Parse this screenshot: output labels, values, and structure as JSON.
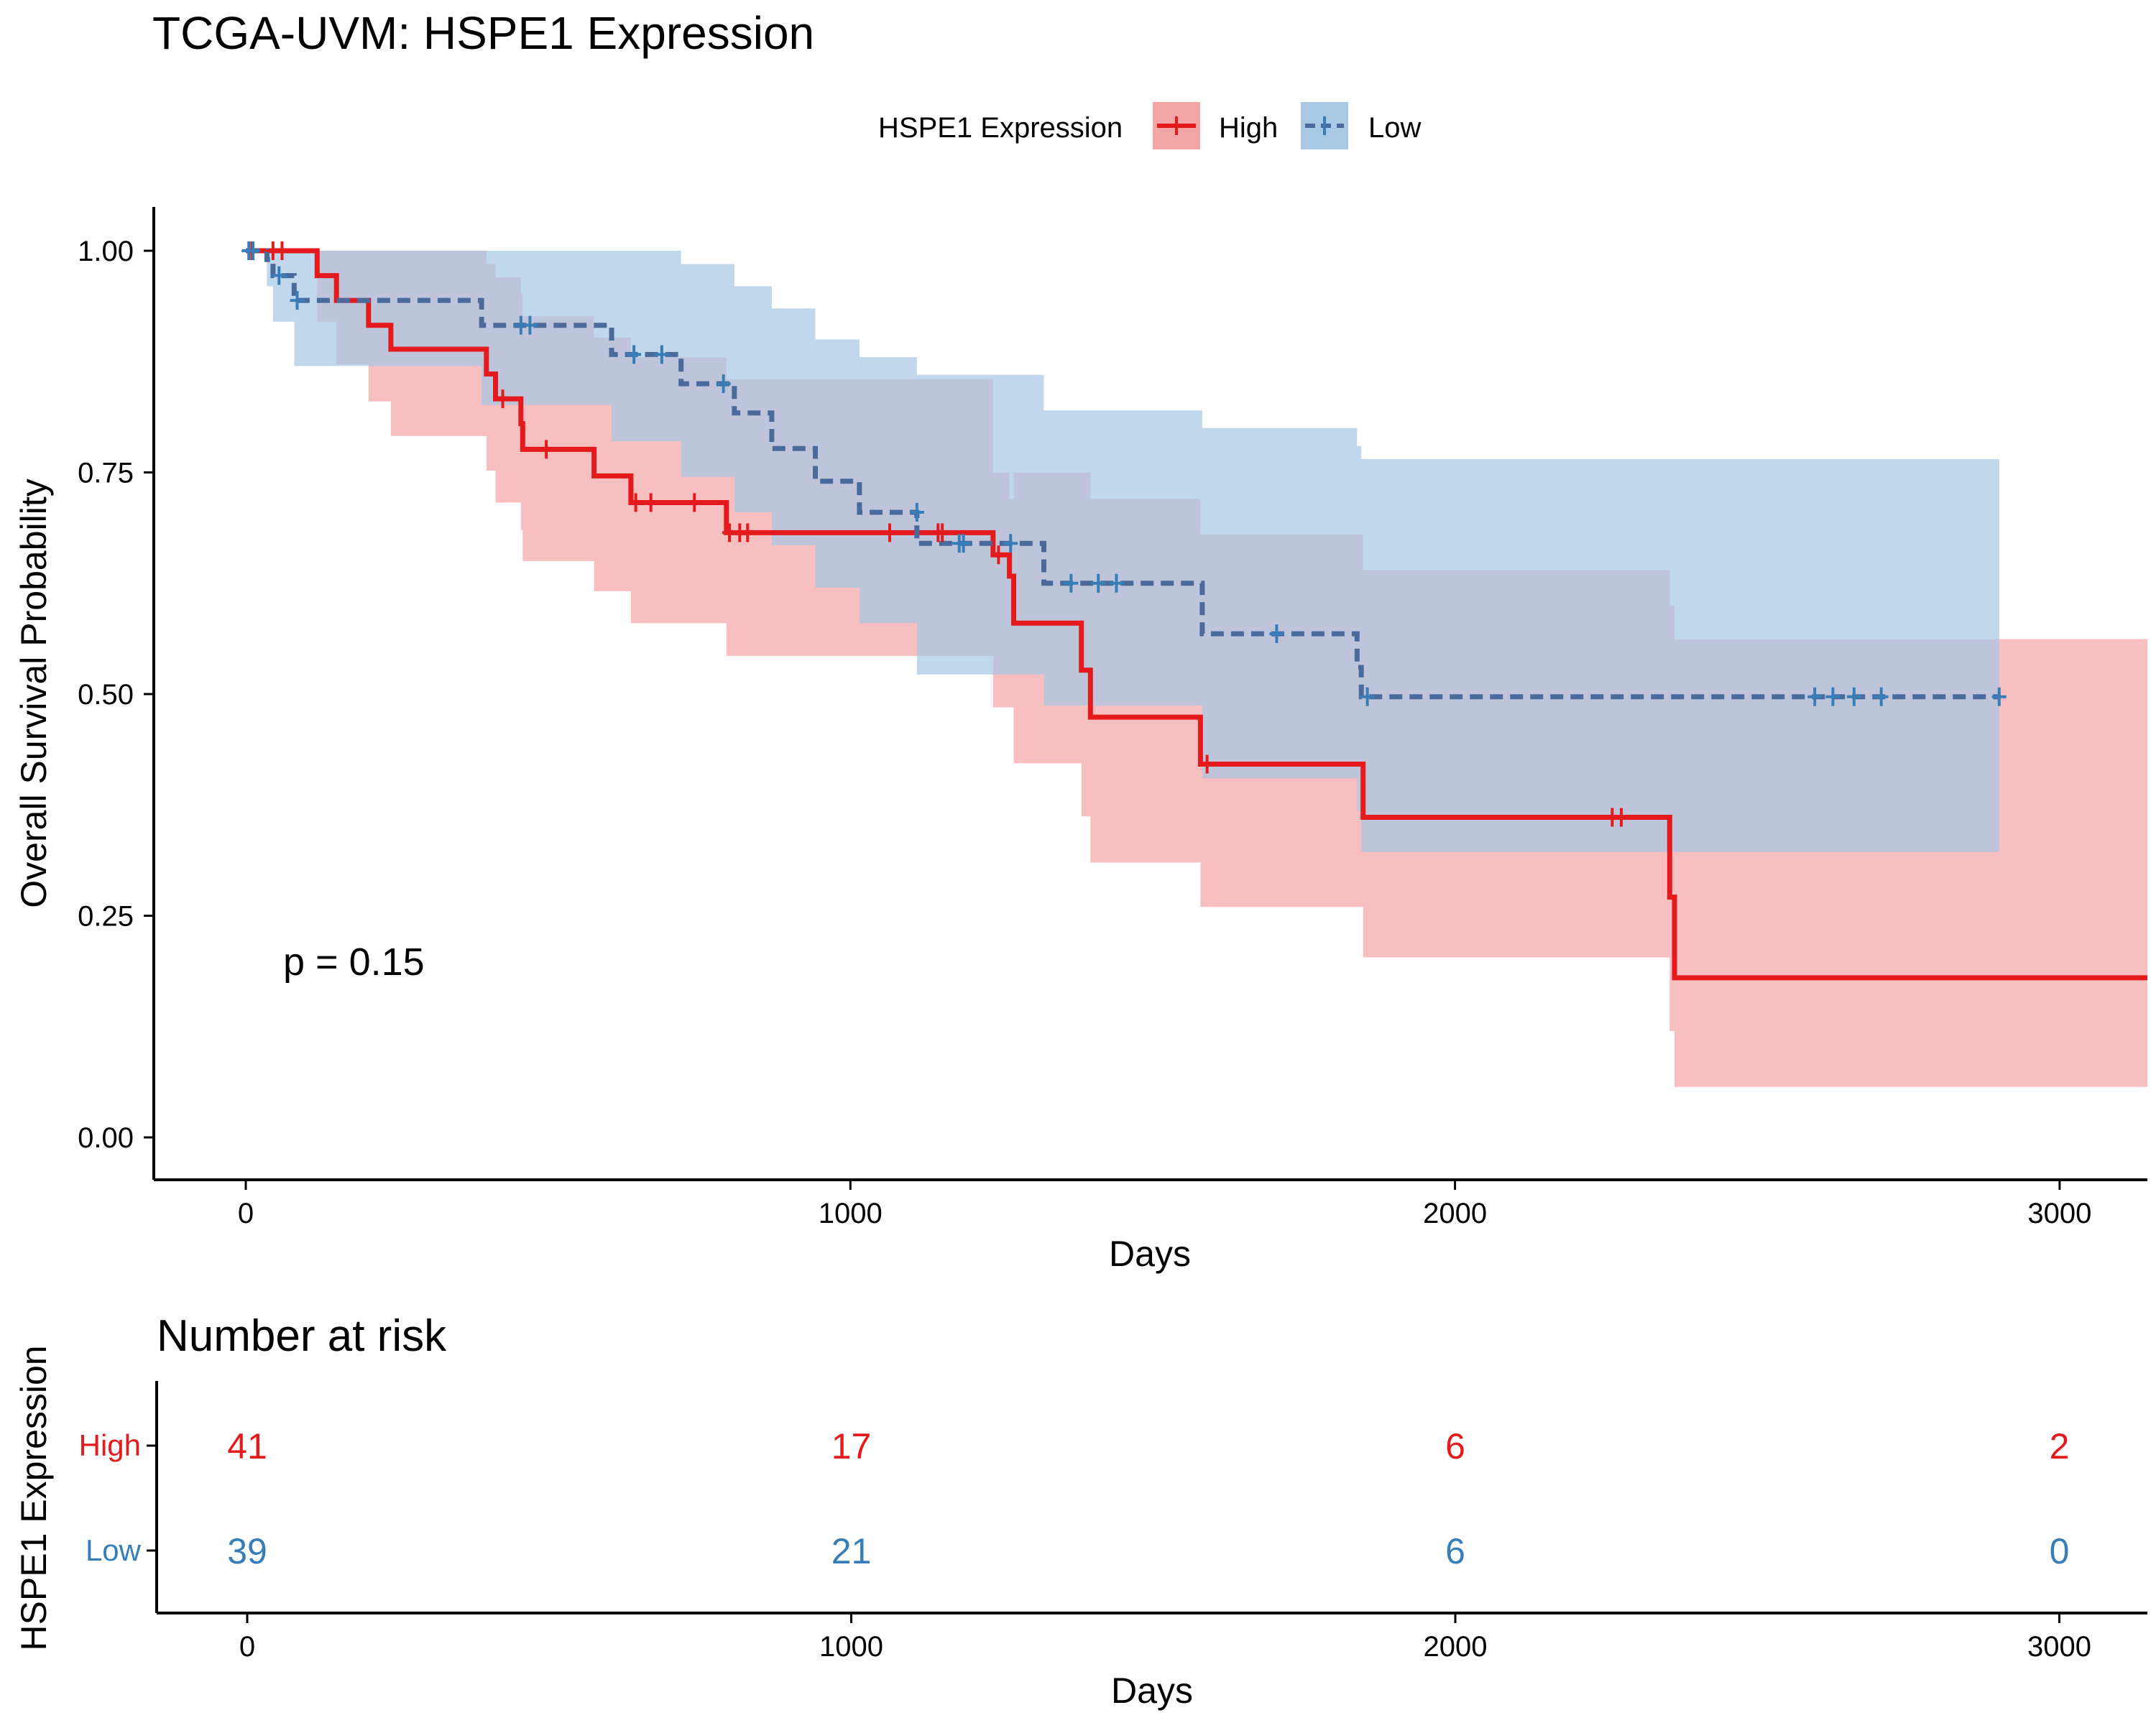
{
  "title": "TCGA-UVM: HSPE1 Expression",
  "legend": {
    "title": "HSPE1 Expression",
    "items": [
      {
        "label": "High",
        "color": "#E41A1C"
      },
      {
        "label": "Low",
        "color": "#377EB8"
      }
    ]
  },
  "p_value_text": "p = 0.15",
  "chart_data": [
    {
      "type": "line",
      "subtype": "kaplan-meier",
      "title": "TCGA-UVM: HSPE1 Expression",
      "xlabel": "Days",
      "ylabel": "Overall Survival Probability",
      "xlim": [
        -150,
        3150
      ],
      "ylim": [
        -0.05,
        1.05
      ],
      "x_ticks": [
        0,
        1000,
        2000,
        3000
      ],
      "y_ticks": [
        0.0,
        0.25,
        0.5,
        0.75,
        1.0
      ],
      "y_tick_labels": [
        "0.00",
        "0.25",
        "0.50",
        "0.75",
        "1.00"
      ],
      "legend_position": "top",
      "annotation": "p = 0.15",
      "series": [
        {
          "name": "High",
          "color": "#E41A1C",
          "fill": "#F4A6A6",
          "dash": "solid",
          "steps": [
            {
              "x": 0,
              "y": 1.0,
              "lo": 1.0,
              "hi": 1.0
            },
            {
              "x": 118,
              "y": 0.972,
              "lo": 0.92,
              "hi": 1.0
            },
            {
              "x": 150,
              "y": 0.944,
              "lo": 0.872,
              "hi": 1.0
            },
            {
              "x": 203,
              "y": 0.916,
              "lo": 0.83,
              "hi": 1.0
            },
            {
              "x": 240,
              "y": 0.889,
              "lo": 0.791,
              "hi": 1.0
            },
            {
              "x": 398,
              "y": 0.861,
              "lo": 0.752,
              "hi": 0.985
            },
            {
              "x": 413,
              "y": 0.833,
              "lo": 0.716,
              "hi": 0.97
            },
            {
              "x": 455,
              "y": 0.805,
              "lo": 0.685,
              "hi": 0.952
            },
            {
              "x": 458,
              "y": 0.776,
              "lo": 0.65,
              "hi": 0.926
            },
            {
              "x": 576,
              "y": 0.746,
              "lo": 0.616,
              "hi": 0.902
            },
            {
              "x": 637,
              "y": 0.716,
              "lo": 0.58,
              "hi": 0.88
            },
            {
              "x": 795,
              "y": 0.682,
              "lo": 0.543,
              "hi": 0.855
            },
            {
              "x": 1236,
              "y": 0.657,
              "lo": 0.485,
              "hi": 0.75
            },
            {
              "x": 1263,
              "y": 0.633,
              "lo": 0.485,
              "hi": 0.72
            },
            {
              "x": 1270,
              "y": 0.58,
              "lo": 0.422,
              "hi": 0.75
            },
            {
              "x": 1382,
              "y": 0.527,
              "lo": 0.362,
              "hi": 0.75
            },
            {
              "x": 1397,
              "y": 0.474,
              "lo": 0.31,
              "hi": 0.72
            },
            {
              "x": 1579,
              "y": 0.421,
              "lo": 0.26,
              "hi": 0.68
            },
            {
              "x": 1848,
              "y": 0.361,
              "lo": 0.203,
              "hi": 0.64
            },
            {
              "x": 2355,
              "y": 0.271,
              "lo": 0.12,
              "hi": 0.6
            },
            {
              "x": 2363,
              "y": 0.18,
              "lo": 0.057,
              "hi": 0.562
            },
            {
              "x": 3150,
              "y": 0.18,
              "lo": 0.057,
              "hi": 0.562
            }
          ],
          "censored": [
            {
              "x": 10,
              "y": 1.0
            },
            {
              "x": 45,
              "y": 1.0
            },
            {
              "x": 60,
              "y": 1.0
            },
            {
              "x": 425,
              "y": 0.833
            },
            {
              "x": 497,
              "y": 0.776
            },
            {
              "x": 645,
              "y": 0.716
            },
            {
              "x": 670,
              "y": 0.716
            },
            {
              "x": 742,
              "y": 0.716
            },
            {
              "x": 800,
              "y": 0.682
            },
            {
              "x": 817,
              "y": 0.682
            },
            {
              "x": 830,
              "y": 0.682
            },
            {
              "x": 1065,
              "y": 0.682
            },
            {
              "x": 1145,
              "y": 0.682
            },
            {
              "x": 1152,
              "y": 0.682
            },
            {
              "x": 1245,
              "y": 0.657
            },
            {
              "x": 1590,
              "y": 0.421
            },
            {
              "x": 2260,
              "y": 0.361
            },
            {
              "x": 2275,
              "y": 0.361
            }
          ]
        },
        {
          "name": "Low",
          "color": "#377EB8",
          "line_color": "#4A6A9C",
          "fill": "#A8C8E4",
          "dash": "dashed",
          "steps": [
            {
              "x": 0,
              "y": 1.0,
              "lo": 1.0,
              "hi": 1.0
            },
            {
              "x": 35,
              "y": 0.99,
              "lo": 0.96,
              "hi": 1.0
            },
            {
              "x": 45,
              "y": 0.972,
              "lo": 0.92,
              "hi": 1.0
            },
            {
              "x": 80,
              "y": 0.944,
              "lo": 0.87,
              "hi": 1.0
            },
            {
              "x": 390,
              "y": 0.916,
              "lo": 0.826,
              "hi": 1.0
            },
            {
              "x": 605,
              "y": 0.883,
              "lo": 0.785,
              "hi": 1.0
            },
            {
              "x": 720,
              "y": 0.85,
              "lo": 0.745,
              "hi": 0.985
            },
            {
              "x": 808,
              "y": 0.817,
              "lo": 0.705,
              "hi": 0.96
            },
            {
              "x": 870,
              "y": 0.777,
              "lo": 0.668,
              "hi": 0.935
            },
            {
              "x": 942,
              "y": 0.74,
              "lo": 0.62,
              "hi": 0.9
            },
            {
              "x": 1015,
              "y": 0.705,
              "lo": 0.58,
              "hi": 0.88
            },
            {
              "x": 1110,
              "y": 0.67,
              "lo": 0.522,
              "hi": 0.86
            },
            {
              "x": 1320,
              "y": 0.625,
              "lo": 0.487,
              "hi": 0.82
            },
            {
              "x": 1582,
              "y": 0.568,
              "lo": 0.405,
              "hi": 0.8
            },
            {
              "x": 1838,
              "y": 0.53,
              "lo": 0.368,
              "hi": 0.78
            },
            {
              "x": 1845,
              "y": 0.497,
              "lo": 0.322,
              "hi": 0.765
            },
            {
              "x": 2900,
              "y": 0.497,
              "lo": 0.322,
              "hi": 0.765
            }
          ],
          "censored": [
            {
              "x": 5,
              "y": 1.0
            },
            {
              "x": 12,
              "y": 1.0
            },
            {
              "x": 55,
              "y": 0.972
            },
            {
              "x": 85,
              "y": 0.944
            },
            {
              "x": 455,
              "y": 0.916
            },
            {
              "x": 470,
              "y": 0.916
            },
            {
              "x": 642,
              "y": 0.883
            },
            {
              "x": 688,
              "y": 0.883
            },
            {
              "x": 790,
              "y": 0.85
            },
            {
              "x": 1110,
              "y": 0.705
            },
            {
              "x": 1180,
              "y": 0.67
            },
            {
              "x": 1187,
              "y": 0.67
            },
            {
              "x": 1265,
              "y": 0.67
            },
            {
              "x": 1365,
              "y": 0.625
            },
            {
              "x": 1410,
              "y": 0.625
            },
            {
              "x": 1440,
              "y": 0.625
            },
            {
              "x": 1705,
              "y": 0.568
            },
            {
              "x": 1855,
              "y": 0.497
            },
            {
              "x": 2595,
              "y": 0.497
            },
            {
              "x": 2625,
              "y": 0.497
            },
            {
              "x": 2660,
              "y": 0.497
            },
            {
              "x": 2705,
              "y": 0.497
            },
            {
              "x": 2900,
              "y": 0.497
            }
          ]
        }
      ]
    },
    {
      "type": "table",
      "title": "Number at risk",
      "xlabel": "Days",
      "ylabel": "HSPE1 Expression",
      "x_ticks": [
        0,
        1000,
        2000,
        3000
      ],
      "rows": [
        {
          "name": "High",
          "color": "#E41A1C",
          "values": [
            41,
            17,
            6,
            2
          ]
        },
        {
          "name": "Low",
          "color": "#377EB8",
          "values": [
            39,
            21,
            6,
            0
          ]
        }
      ]
    }
  ]
}
